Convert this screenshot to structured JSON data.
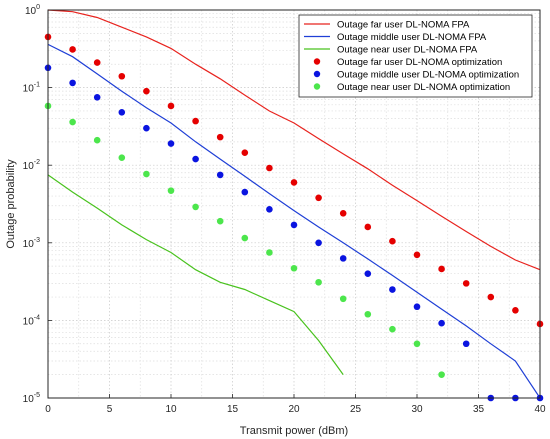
{
  "chart_data": {
    "type": "line",
    "title": "",
    "xlabel": "Transmit power (dBm)",
    "ylabel": "Outage probability",
    "xlim": [
      0,
      40
    ],
    "ylim": [
      1e-05,
      1
    ],
    "yscale": "log",
    "grid": true,
    "minor_grid": true,
    "legend_position": "top-right",
    "x_ticks": [
      "0",
      "5",
      "10",
      "15",
      "20",
      "25",
      "30",
      "35",
      "40"
    ],
    "y_ticks": [
      {
        "value": 1,
        "base": "10",
        "exp": "0"
      },
      {
        "value": 0.1,
        "base": "10",
        "exp": "-1"
      },
      {
        "value": 0.01,
        "base": "10",
        "exp": "-2"
      },
      {
        "value": 0.001,
        "base": "10",
        "exp": "-3"
      },
      {
        "value": 0.0001,
        "base": "10",
        "exp": "-4"
      },
      {
        "value": 1e-05,
        "base": "10",
        "exp": "-5"
      }
    ],
    "series": [
      {
        "name": "Outage far user DL-NOMA FPA",
        "kind": "line",
        "color": "#e8231e",
        "x": [
          0,
          2,
          4,
          6,
          8,
          10,
          12,
          14,
          16,
          18,
          20,
          22,
          24,
          26,
          28,
          30,
          32,
          34,
          36,
          38,
          40
        ],
        "y": [
          1.0,
          0.95,
          0.8,
          0.6,
          0.45,
          0.32,
          0.2,
          0.13,
          0.08,
          0.05,
          0.035,
          0.022,
          0.014,
          0.009,
          0.0055,
          0.0035,
          0.0022,
          0.0014,
          0.0009,
          0.0006,
          0.00045
        ]
      },
      {
        "name": "Outage middle user DL-NOMA FPA",
        "kind": "line",
        "color": "#1f3fd6",
        "x": [
          0,
          2,
          4,
          6,
          8,
          10,
          12,
          14,
          16,
          18,
          20,
          22,
          24,
          26,
          28,
          30,
          32,
          34,
          36,
          38,
          40
        ],
        "y": [
          0.36,
          0.25,
          0.15,
          0.09,
          0.055,
          0.035,
          0.02,
          0.012,
          0.0072,
          0.0043,
          0.0026,
          0.0016,
          0.001,
          0.00062,
          0.00038,
          0.00023,
          0.00014,
          8.5e-05,
          5e-05,
          3e-05,
          1e-05
        ]
      },
      {
        "name": "Outage near user DL-NOMA FPA",
        "kind": "line",
        "color": "#49c21e",
        "x": [
          0,
          2,
          4,
          6,
          8,
          10,
          12,
          14,
          16,
          18,
          20,
          22,
          24
        ],
        "y": [
          0.0075,
          0.0045,
          0.0028,
          0.0017,
          0.0011,
          0.00075,
          0.00045,
          0.00031,
          0.00025,
          0.00018,
          0.00013,
          5.5e-05,
          2e-05
        ]
      },
      {
        "name": "Outage far user DL-NOMA optimization",
        "kind": "scatter",
        "color": "#e50000",
        "x": [
          0,
          2,
          4,
          6,
          8,
          10,
          12,
          14,
          16,
          18,
          20,
          22,
          24,
          26,
          28,
          30,
          32,
          34,
          36,
          38,
          40
        ],
        "y": [
          0.45,
          0.31,
          0.21,
          0.14,
          0.09,
          0.058,
          0.037,
          0.023,
          0.0145,
          0.0092,
          0.006,
          0.0038,
          0.0024,
          0.0016,
          0.00105,
          0.0007,
          0.00046,
          0.0003,
          0.0002,
          0.000135,
          9e-05
        ]
      },
      {
        "name": "Outage middle user DL-NOMA optimization",
        "kind": "scatter",
        "color": "#0a14e0",
        "x": [
          0,
          2,
          4,
          6,
          8,
          10,
          12,
          14,
          16,
          18,
          20,
          22,
          24,
          26,
          28,
          30,
          32,
          34,
          36,
          38,
          40
        ],
        "y": [
          0.18,
          0.115,
          0.075,
          0.048,
          0.03,
          0.019,
          0.012,
          0.0075,
          0.0045,
          0.0027,
          0.0017,
          0.001,
          0.00063,
          0.0004,
          0.00025,
          0.00015,
          9.2e-05,
          5e-05,
          1e-05,
          1e-05,
          1e-05
        ]
      },
      {
        "name": "Outage near user DL-NOMA optimization",
        "kind": "scatter",
        "color": "#4ce64c",
        "x": [
          0,
          2,
          4,
          6,
          8,
          10,
          12,
          14,
          16,
          18,
          20,
          22,
          24,
          26,
          28,
          30,
          32
        ],
        "y": [
          0.058,
          0.036,
          0.021,
          0.0125,
          0.0077,
          0.0047,
          0.0029,
          0.0019,
          0.00115,
          0.00075,
          0.00047,
          0.00031,
          0.00019,
          0.00012,
          7.7e-05,
          5e-05,
          2e-05
        ]
      }
    ]
  }
}
